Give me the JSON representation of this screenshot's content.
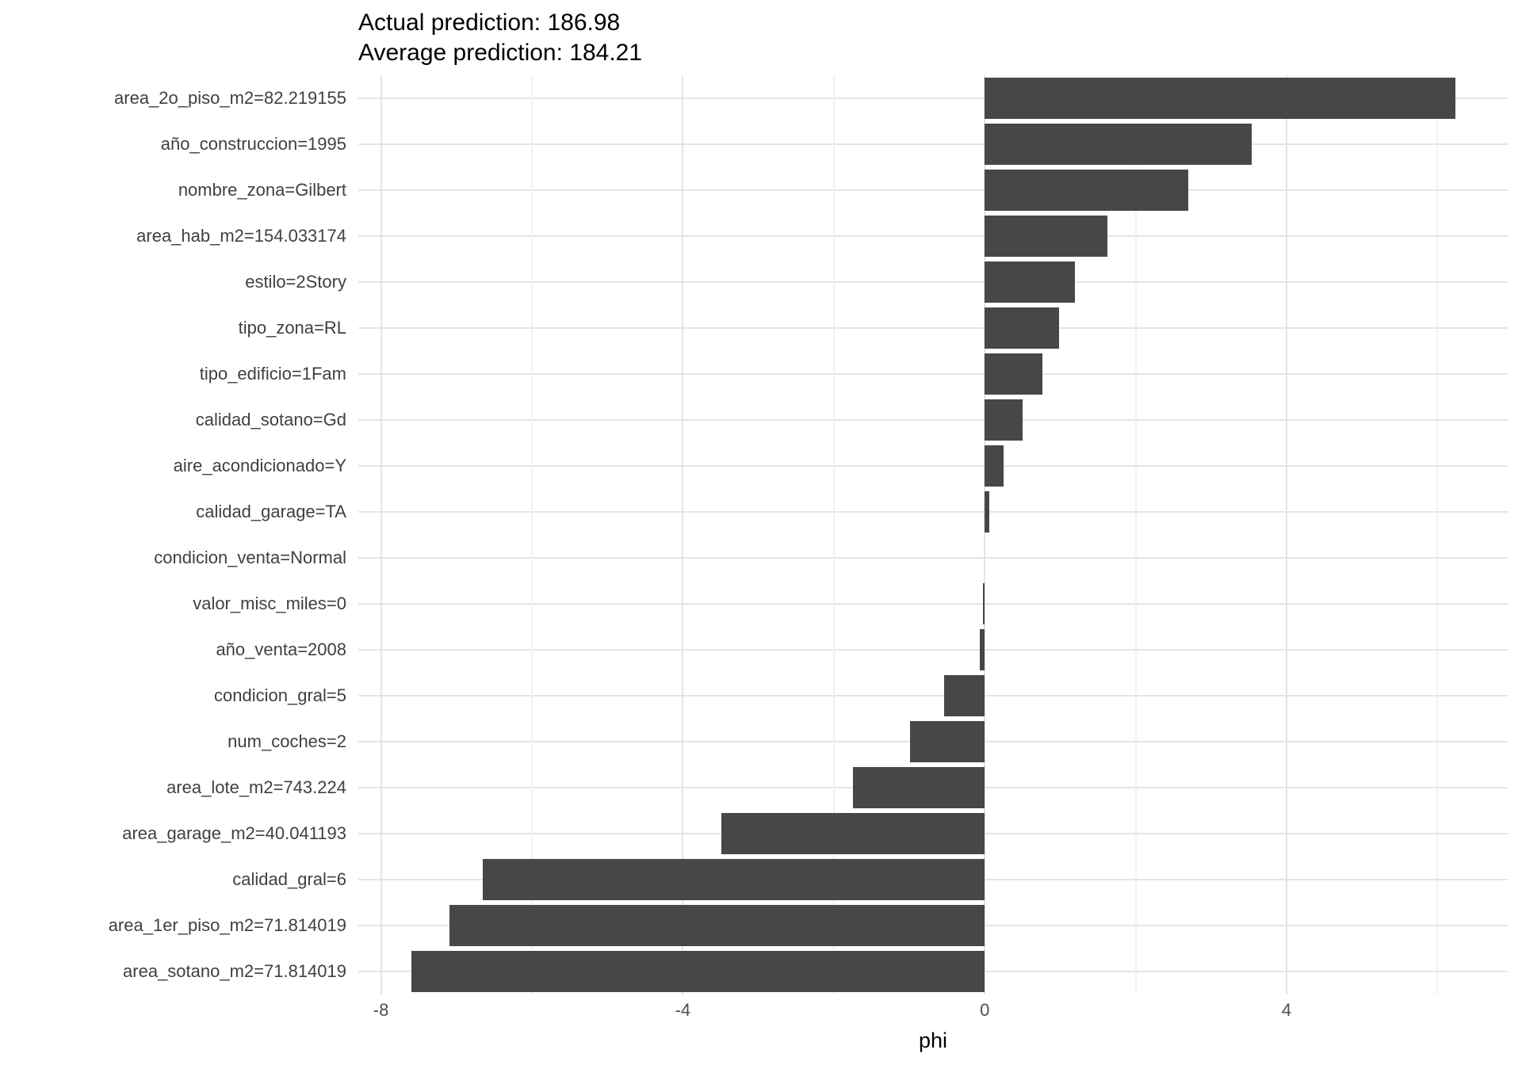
{
  "title": {
    "line1": "Actual prediction: 186.98",
    "line2": "Average prediction: 184.21"
  },
  "chart_data": {
    "type": "bar",
    "orientation": "horizontal",
    "title": "Actual prediction: 186.98\nAverage prediction: 184.21",
    "xlabel": "phi",
    "ylabel": "",
    "categories": [
      "area_2o_piso_m2=82.219155",
      "año_construccion=1995",
      "nombre_zona=Gilbert",
      "area_hab_m2=154.033174",
      "estilo=2Story",
      "tipo_zona=RL",
      "tipo_edificio=1Fam",
      "calidad_sotano=Gd",
      "aire_acondicionado=Y",
      "calidad_garage=TA",
      "condicion_venta=Normal",
      "valor_misc_miles=0",
      "año_venta=2008",
      "condicion_gral=5",
      "num_coches=2",
      "area_lote_m2=743.224",
      "area_garage_m2=40.041193",
      "calidad_gral=6",
      "area_1er_piso_m2=71.814019",
      "area_sotano_m2=71.814019"
    ],
    "values": [
      6.24,
      3.54,
      2.7,
      1.63,
      1.2,
      0.99,
      0.76,
      0.5,
      0.25,
      0.06,
      0.0,
      -0.02,
      -0.07,
      -0.54,
      -0.99,
      -1.75,
      -3.49,
      -6.65,
      -7.09,
      -7.6
    ],
    "xlim": [
      -8.3,
      6.93
    ],
    "x_major_ticks": [
      -8,
      -4,
      0,
      4
    ],
    "x_minor_ticks": [
      -6,
      -2,
      2,
      6
    ],
    "grid": "on",
    "legend": "none",
    "bar_color": "#474747",
    "background_color": "#ffffff",
    "grid_major_color": "#e4e4e4",
    "grid_minor_color": "#f1f1f1"
  }
}
